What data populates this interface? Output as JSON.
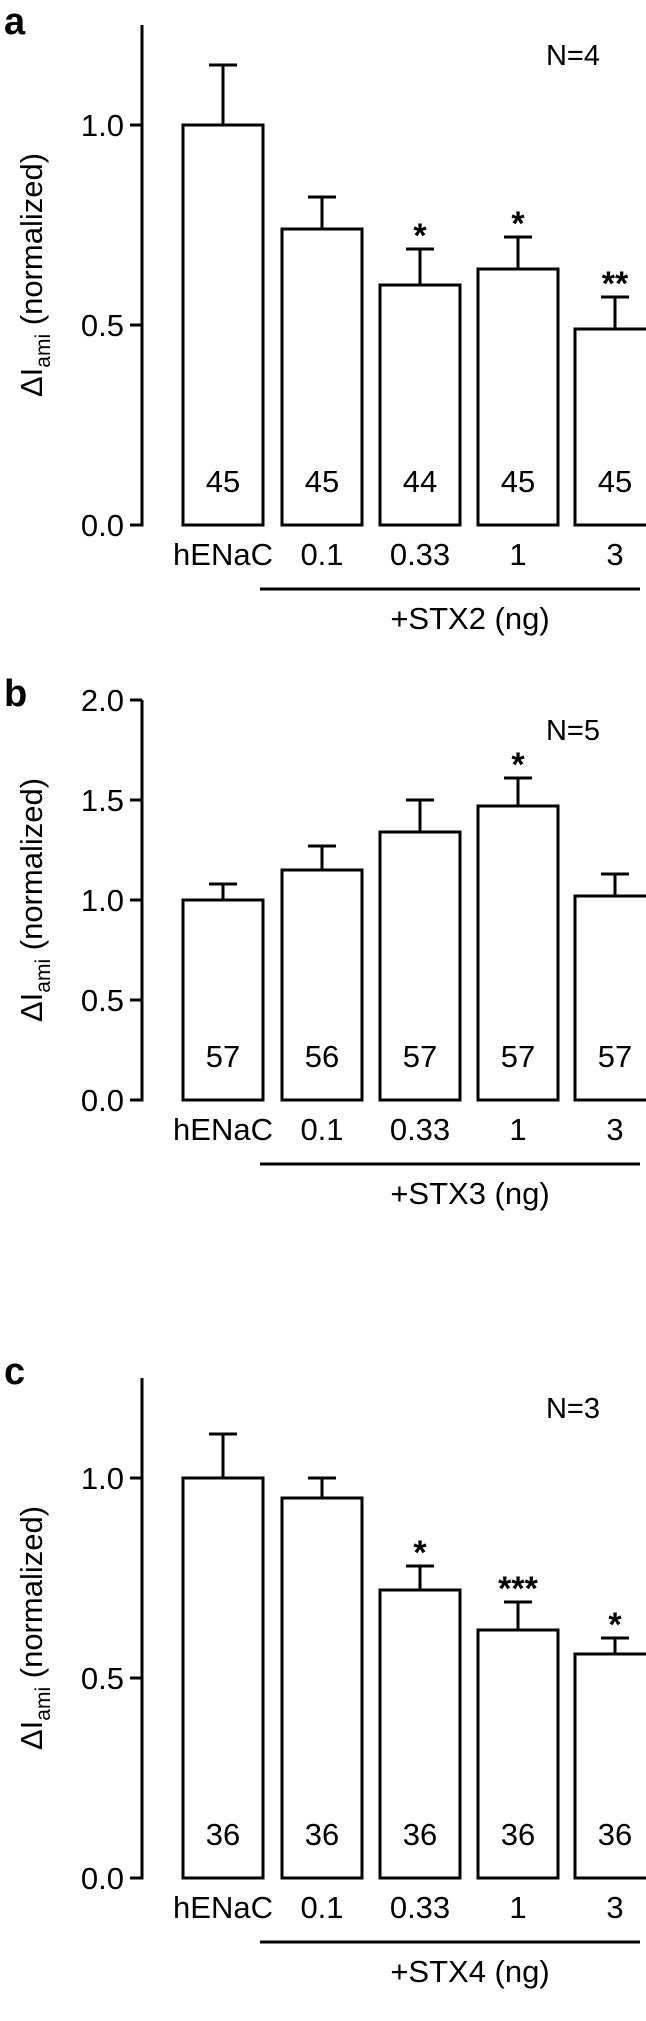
{
  "chart_data": [
    {
      "type": "bar",
      "panel": "a",
      "annotation": "N=4",
      "ylabel": {
        "prefix": "ΔI",
        "subscript": "ami",
        "suffix": " (normalized)"
      },
      "ylim": [
        0,
        1.25
      ],
      "yticks": [
        "0.0",
        "0.5",
        "1.0"
      ],
      "categories": [
        "hENaC",
        "0.1",
        "0.33",
        "1",
        "3"
      ],
      "group_label": "+STX2 (ng)",
      "values": [
        1.0,
        0.74,
        0.6,
        0.64,
        0.49
      ],
      "errors": [
        0.15,
        0.08,
        0.09,
        0.08,
        0.08
      ],
      "counts": [
        "45",
        "45",
        "44",
        "45",
        "45"
      ],
      "significance": [
        "",
        "",
        "*",
        "*",
        "**"
      ]
    },
    {
      "type": "bar",
      "panel": "b",
      "annotation": "N=5",
      "ylabel": {
        "prefix": "ΔI",
        "subscript": "ami",
        "suffix": " (normalized)"
      },
      "ylim": [
        0,
        2.0
      ],
      "yticks": [
        "0.0",
        "0.5",
        "1.0",
        "1.5",
        "2.0"
      ],
      "categories": [
        "hENaC",
        "0.1",
        "0.33",
        "1",
        "3"
      ],
      "group_label": "+STX3 (ng)",
      "values": [
        1.0,
        1.15,
        1.34,
        1.47,
        1.02
      ],
      "errors": [
        0.08,
        0.12,
        0.16,
        0.14,
        0.11
      ],
      "counts": [
        "57",
        "56",
        "57",
        "57",
        "57"
      ],
      "significance": [
        "",
        "",
        "",
        "*",
        ""
      ]
    },
    {
      "type": "bar",
      "panel": "c",
      "annotation": "N=3",
      "ylabel": {
        "prefix": "ΔI",
        "subscript": "ami",
        "suffix": " (normalized)"
      },
      "ylim": [
        0,
        1.25
      ],
      "yticks": [
        "0.0",
        "0.5",
        "1.0"
      ],
      "categories": [
        "hENaC",
        "0.1",
        "0.33",
        "1",
        "3"
      ],
      "group_label": "+STX4 (ng)",
      "values": [
        1.0,
        0.95,
        0.72,
        0.62,
        0.56
      ],
      "errors": [
        0.11,
        0.05,
        0.06,
        0.07,
        0.04
      ],
      "counts": [
        "36",
        "36",
        "36",
        "36",
        "36"
      ],
      "significance": [
        "",
        "",
        "*",
        "***",
        "*"
      ]
    }
  ]
}
